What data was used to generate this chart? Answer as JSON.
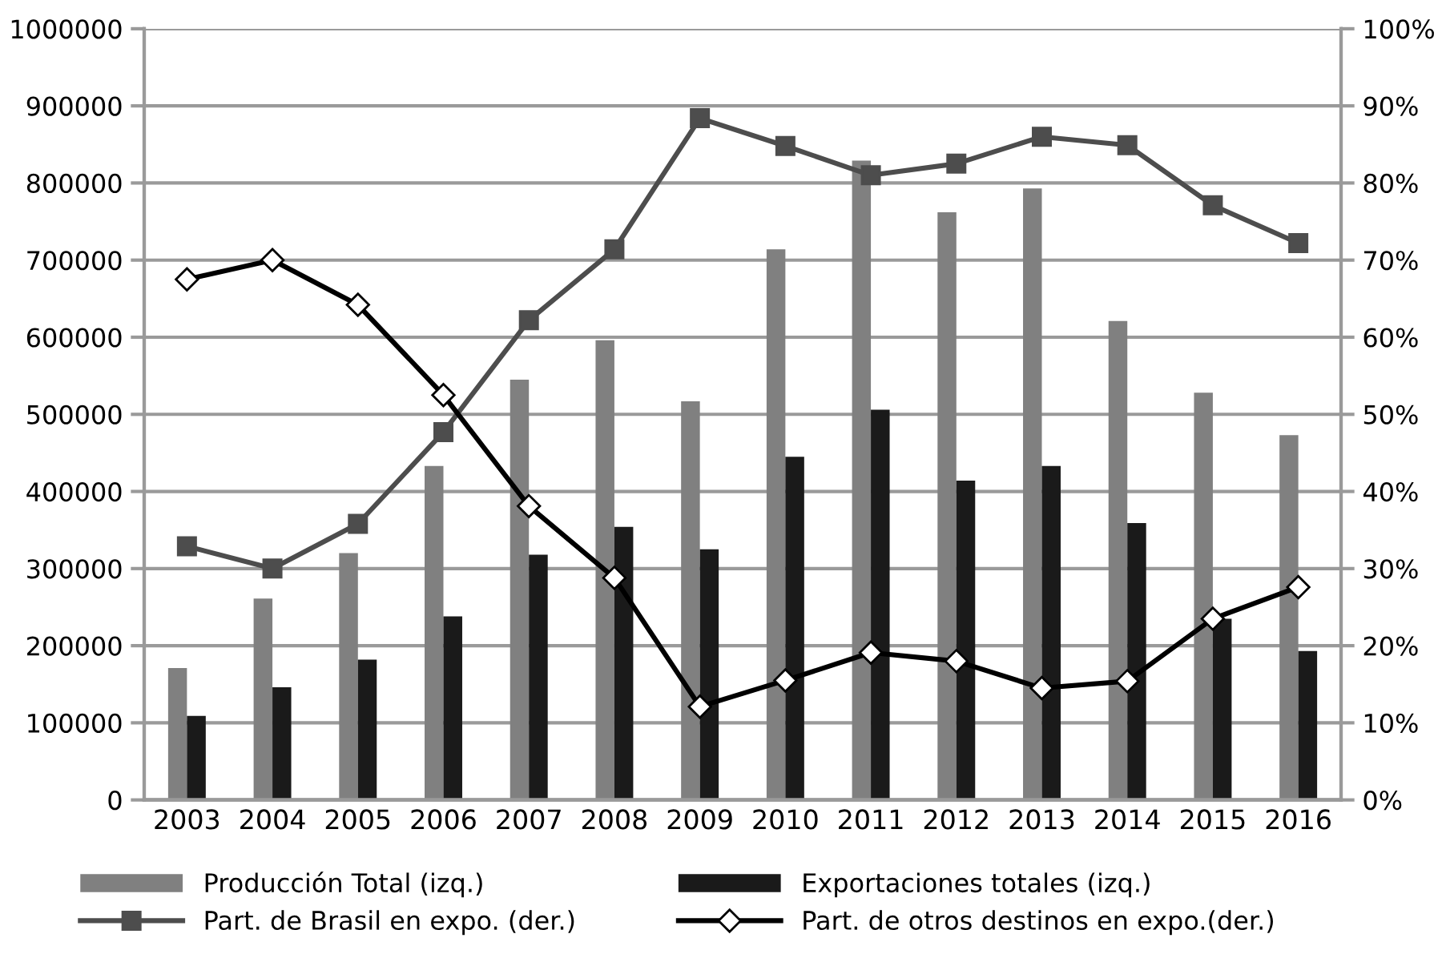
{
  "chart_data": {
    "type": "bar",
    "categories": [
      "2003",
      "2004",
      "2005",
      "2006",
      "2007",
      "2008",
      "2009",
      "2010",
      "2011",
      "2012",
      "2013",
      "2014",
      "2015",
      "2016"
    ],
    "series": [
      {
        "name": "Producción Total (izq.)",
        "color": "#808080",
        "values": [
          171000,
          261000,
          320000,
          433000,
          545000,
          596000,
          517000,
          714000,
          829000,
          762000,
          793000,
          621000,
          528000,
          473000
        ]
      },
      {
        "name": "Exportaciones totales (izq.)",
        "color": "#1a1a1a",
        "values": [
          109000,
          146000,
          182000,
          238000,
          318000,
          354000,
          325000,
          445000,
          506000,
          414000,
          433000,
          359000,
          235000,
          193000
        ]
      },
      {
        "name": "Part. de Brasil en expo. (der.)",
        "type": "line",
        "axis": "y2",
        "marker": "square",
        "color": "#4d4d4d",
        "values": [
          32.9,
          30.0,
          35.8,
          47.7,
          62.2,
          71.4,
          88.4,
          84.8,
          81.0,
          82.5,
          86.0,
          84.9,
          77.1,
          72.2
        ]
      },
      {
        "name": "Part. de otros destinos en expo.(der.)",
        "type": "line",
        "axis": "y2",
        "marker": "diamond",
        "color": "#000000",
        "values": [
          67.5,
          70.0,
          64.2,
          52.5,
          38.1,
          28.8,
          12.1,
          15.5,
          19.1,
          18.0,
          14.5,
          15.4,
          23.5,
          27.6
        ]
      }
    ],
    "ylim": [
      0,
      1000000
    ],
    "yticks": [
      0,
      100000,
      200000,
      300000,
      400000,
      500000,
      600000,
      700000,
      800000,
      900000,
      1000000
    ],
    "y2lim": [
      0,
      100
    ],
    "y2ticks": [
      {
        "value": 0,
        "label": "0%"
      },
      {
        "value": 10,
        "label": "10%"
      },
      {
        "value": 20,
        "label": "20%"
      },
      {
        "value": 30,
        "label": "30%"
      },
      {
        "value": 40,
        "label": "40%"
      },
      {
        "value": 50,
        "label": "50%"
      },
      {
        "value": 60,
        "label": "60%"
      },
      {
        "value": 70,
        "label": "70%"
      },
      {
        "value": 80,
        "label": "80%"
      },
      {
        "value": 90,
        "label": "90%"
      },
      {
        "value": 100,
        "label": "100%"
      }
    ],
    "grid": "y",
    "legend": "bottom"
  }
}
